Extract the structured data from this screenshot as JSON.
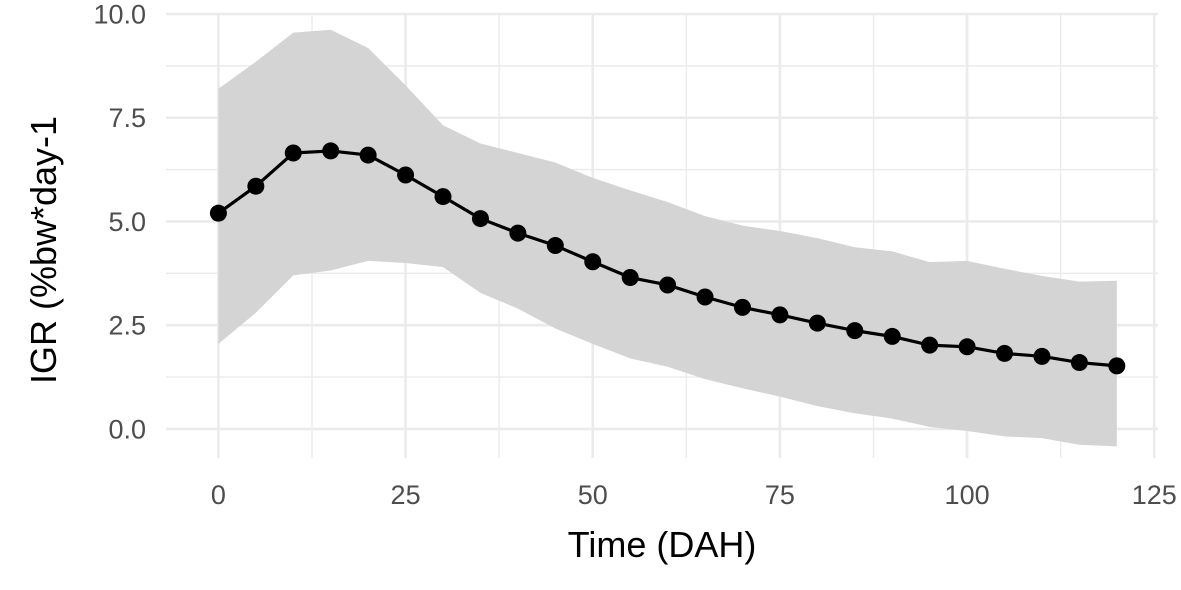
{
  "chart_data": {
    "type": "line",
    "title": "",
    "xlabel": "Time (DAH)",
    "ylabel": "IGR (%bw*day-1",
    "xlim": [
      -7,
      125.5
    ],
    "ylim": [
      -0.7,
      10.0
    ],
    "x_ticks": [
      0,
      25,
      50,
      75,
      100,
      125
    ],
    "y_ticks": [
      0.0,
      2.5,
      5.0,
      7.5,
      10.0
    ],
    "x_tick_labels": [
      "0",
      "25",
      "50",
      "75",
      "100",
      "125"
    ],
    "y_tick_labels": [
      "0.0",
      "2.5",
      "5.0",
      "7.5",
      "10.0"
    ],
    "grid": true,
    "legend": "none",
    "colors": {
      "line": "#000000",
      "points": "#000000",
      "ribbon": "#d4d4d4",
      "grid": "#ebebeb",
      "tick_text": "#4d4d4d"
    },
    "series": [
      {
        "x": [
          0,
          5,
          10,
          15,
          20,
          25,
          30,
          35,
          40,
          45,
          50,
          55,
          60,
          65,
          70,
          75,
          80,
          85,
          90,
          95,
          100,
          105,
          110,
          115,
          120
        ],
        "y": [
          5.2,
          5.85,
          6.65,
          6.7,
          6.6,
          6.12,
          5.6,
          5.07,
          4.72,
          4.42,
          4.03,
          3.65,
          3.47,
          3.18,
          2.93,
          2.75,
          2.55,
          2.37,
          2.23,
          2.02,
          1.98,
          1.82,
          1.75,
          1.6,
          1.52
        ],
        "lower": [
          2.05,
          2.8,
          3.7,
          3.82,
          4.05,
          4.0,
          3.9,
          3.28,
          2.9,
          2.42,
          2.05,
          1.7,
          1.5,
          1.2,
          0.98,
          0.78,
          0.55,
          0.38,
          0.25,
          0.05,
          -0.05,
          -0.18,
          -0.22,
          -0.38,
          -0.42
        ],
        "upper": [
          8.2,
          8.85,
          9.55,
          9.62,
          9.18,
          8.28,
          7.32,
          6.88,
          6.65,
          6.42,
          6.05,
          5.75,
          5.47,
          5.13,
          4.9,
          4.77,
          4.6,
          4.38,
          4.28,
          4.02,
          4.05,
          3.86,
          3.69,
          3.55,
          3.57
        ]
      }
    ]
  }
}
